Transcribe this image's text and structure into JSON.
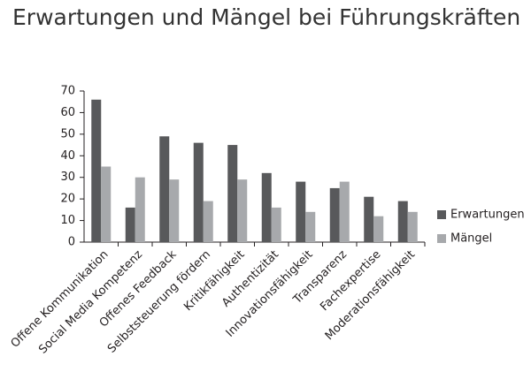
{
  "chart_data": {
    "type": "bar",
    "title": "Erwartungen und Mängel bei Führungskräften",
    "categories": [
      "Offene Kommunikation",
      "Social Media Kompetenz",
      "Offenes Feedback",
      "Selbststeuerung fördern",
      "Kritikfähigkeit",
      "Authentizität",
      "Innovationsfähigkeit",
      "Transparenz",
      "Fachexpertise",
      "Moderationsfähigkeit"
    ],
    "series": [
      {
        "name": "Erwartungen",
        "color": "#58595b",
        "values": [
          66,
          16,
          49,
          46,
          45,
          32,
          28,
          25,
          21,
          19
        ]
      },
      {
        "name": "Mängel",
        "color": "#a7a9ac",
        "values": [
          35,
          30,
          29,
          19,
          29,
          16,
          14,
          28,
          12,
          14
        ]
      }
    ],
    "ylim": [
      0,
      70
    ],
    "yticks": [
      0,
      10,
      20,
      30,
      40,
      50,
      60,
      70
    ],
    "grid": false,
    "legend": "right"
  }
}
